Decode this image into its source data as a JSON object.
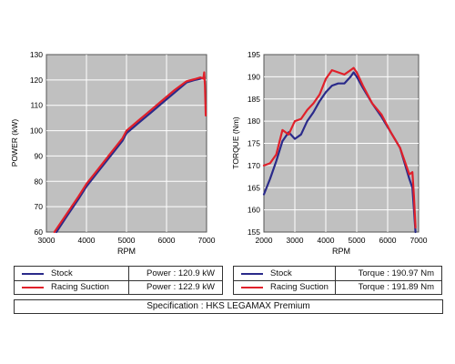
{
  "colors": {
    "stock": "#2a2a8a",
    "racing": "#e0202a",
    "plot_bg": "#c0c0c0",
    "grid": "#ffffff"
  },
  "chart_data": [
    {
      "type": "line",
      "title": "",
      "xlabel": "RPM",
      "ylabel": "POWER (kW)",
      "xlim": [
        3000,
        7000
      ],
      "ylim": [
        60,
        130
      ],
      "xticks": [
        3000,
        4000,
        5000,
        6000,
        7000
      ],
      "yticks": [
        60,
        70,
        80,
        90,
        100,
        110,
        120,
        130
      ],
      "grid": true,
      "series": [
        {
          "name": "Stock",
          "color": "#2a2a8a",
          "x": [
            3250,
            3500,
            3800,
            4000,
            4300,
            4600,
            4900,
            5000,
            5300,
            5600,
            5900,
            6200,
            6500,
            6700,
            6850,
            6950
          ],
          "y": [
            60,
            66,
            73,
            78,
            84,
            90,
            96,
            99,
            103,
            107,
            111,
            115,
            119,
            120,
            120.5,
            121
          ]
        },
        {
          "name": "Racing Suction",
          "color": "#e0202a",
          "x": [
            3200,
            3500,
            3800,
            4000,
            4300,
            4600,
            4900,
            5000,
            5300,
            5600,
            5900,
            6200,
            6500,
            6700,
            6850,
            6920,
            6940,
            6960,
            6980
          ],
          "y": [
            60,
            67,
            74,
            79,
            85,
            91,
            97,
            100,
            104,
            108,
            112,
            116,
            119.5,
            120.3,
            121,
            120.5,
            123,
            118,
            106
          ]
        }
      ]
    },
    {
      "type": "line",
      "title": "",
      "xlabel": "RPM",
      "ylabel": "TORQUE (Nm)",
      "xlim": [
        2000,
        7000
      ],
      "ylim": [
        155,
        195
      ],
      "xticks": [
        2000,
        3000,
        4000,
        5000,
        6000,
        7000
      ],
      "yticks": [
        155,
        160,
        165,
        170,
        175,
        180,
        185,
        190,
        195
      ],
      "grid": true,
      "series": [
        {
          "name": "Stock",
          "color": "#2a2a8a",
          "x": [
            2000,
            2200,
            2400,
            2600,
            2800,
            3000,
            3200,
            3400,
            3600,
            3800,
            4000,
            4200,
            4400,
            4600,
            4800,
            4900,
            5000,
            5200,
            5500,
            5800,
            6100,
            6400,
            6700,
            6800,
            6850,
            6900
          ],
          "y": [
            163.5,
            167,
            171,
            175.5,
            177.5,
            176,
            177,
            180,
            182,
            184.5,
            186.5,
            188,
            188.5,
            188.5,
            190,
            191,
            190,
            187.5,
            184,
            181,
            177.5,
            174,
            167,
            165,
            160,
            155
          ]
        },
        {
          "name": "Racing Suction",
          "color": "#e0202a",
          "x": [
            2000,
            2200,
            2400,
            2600,
            2800,
            3000,
            3200,
            3400,
            3600,
            3800,
            4000,
            4200,
            4400,
            4600,
            4800,
            4900,
            5000,
            5200,
            5500,
            5800,
            6100,
            6400,
            6700,
            6800,
            6850,
            6900
          ],
          "y": [
            170,
            170.5,
            172.5,
            178,
            177,
            180,
            180.5,
            182.5,
            184,
            186,
            189.5,
            191.5,
            191,
            190.5,
            191.5,
            192,
            191,
            188,
            184,
            181.5,
            177.5,
            174,
            168,
            168.5,
            163,
            156
          ]
        }
      ]
    }
  ],
  "legends": [
    {
      "rows": [
        {
          "name": "Stock",
          "value": "Power : 120.9 kW"
        },
        {
          "name": "Racing Suction",
          "value": "Power : 122.9 kW"
        }
      ]
    },
    {
      "rows": [
        {
          "name": "Stock",
          "value": "Torque : 190.97 Nm"
        },
        {
          "name": "Racing Suction",
          "value": "Torque : 191.89 Nm"
        }
      ]
    }
  ],
  "specification": "Specification : HKS LEGAMAX Premium"
}
